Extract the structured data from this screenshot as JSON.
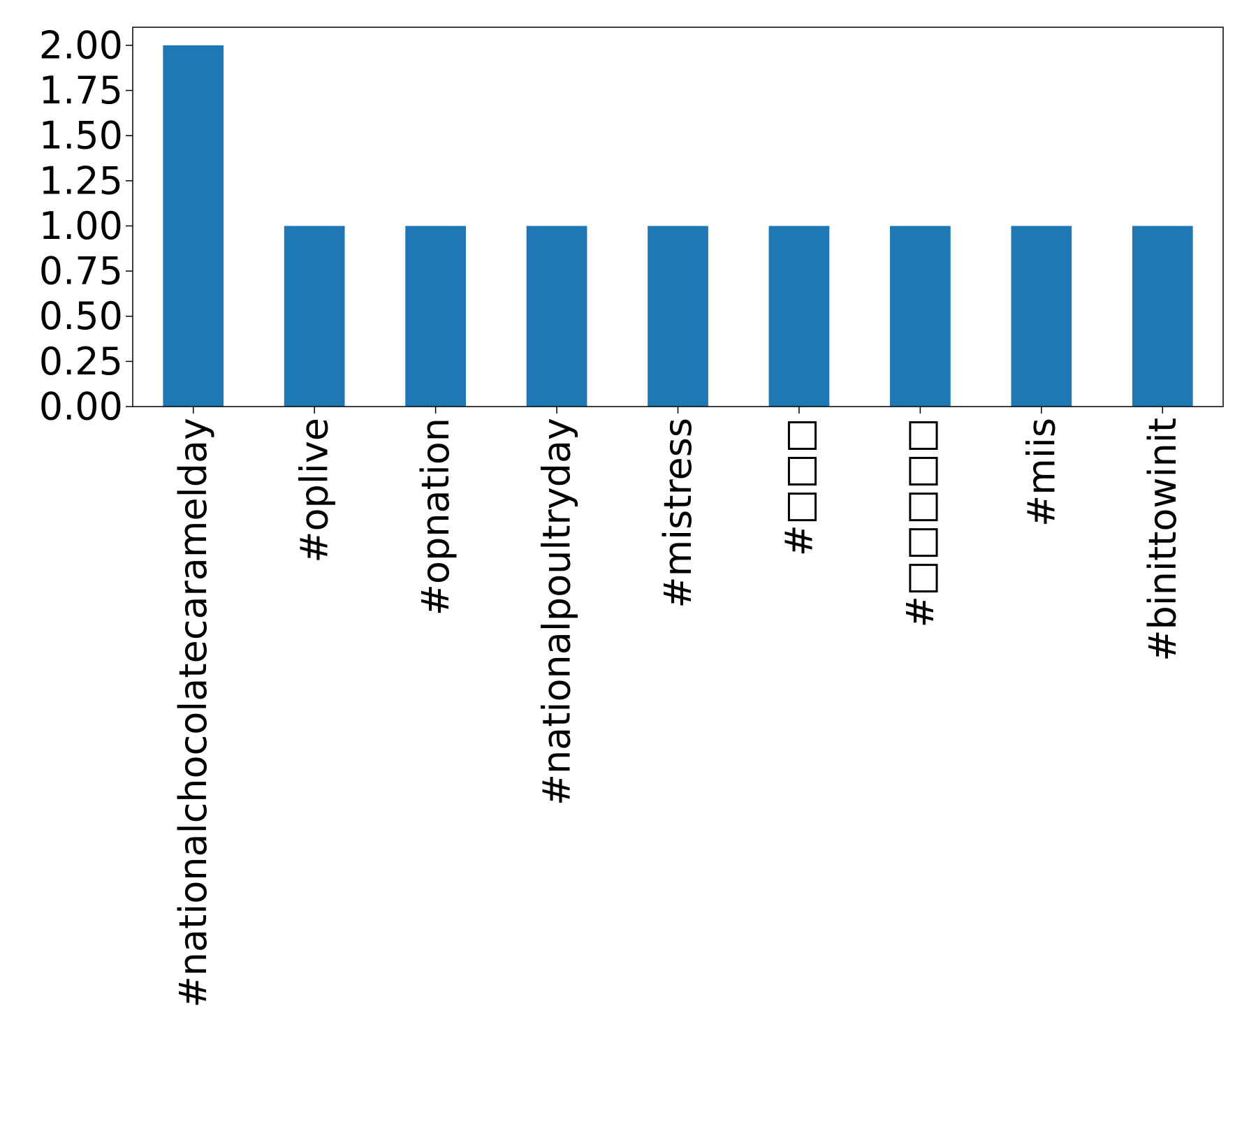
{
  "chart_data": {
    "type": "bar",
    "categories": [
      "#nationalchocolatecaramelday",
      "#oplive",
      "#opnation",
      "#nationalpoultryday",
      "#mistress",
      "#□□□",
      "#□□□□□",
      "#miis",
      "#binittowinit"
    ],
    "values": [
      2,
      1,
      1,
      1,
      1,
      1,
      1,
      1,
      1
    ],
    "title": "",
    "xlabel": "",
    "ylabel": "",
    "ylim": [
      0,
      2.1
    ],
    "yticks": [
      "0.00",
      "0.25",
      "0.50",
      "0.75",
      "1.00",
      "1.25",
      "1.50",
      "1.75",
      "2.00"
    ],
    "grid": false,
    "bar_color": "#1f77b4"
  }
}
